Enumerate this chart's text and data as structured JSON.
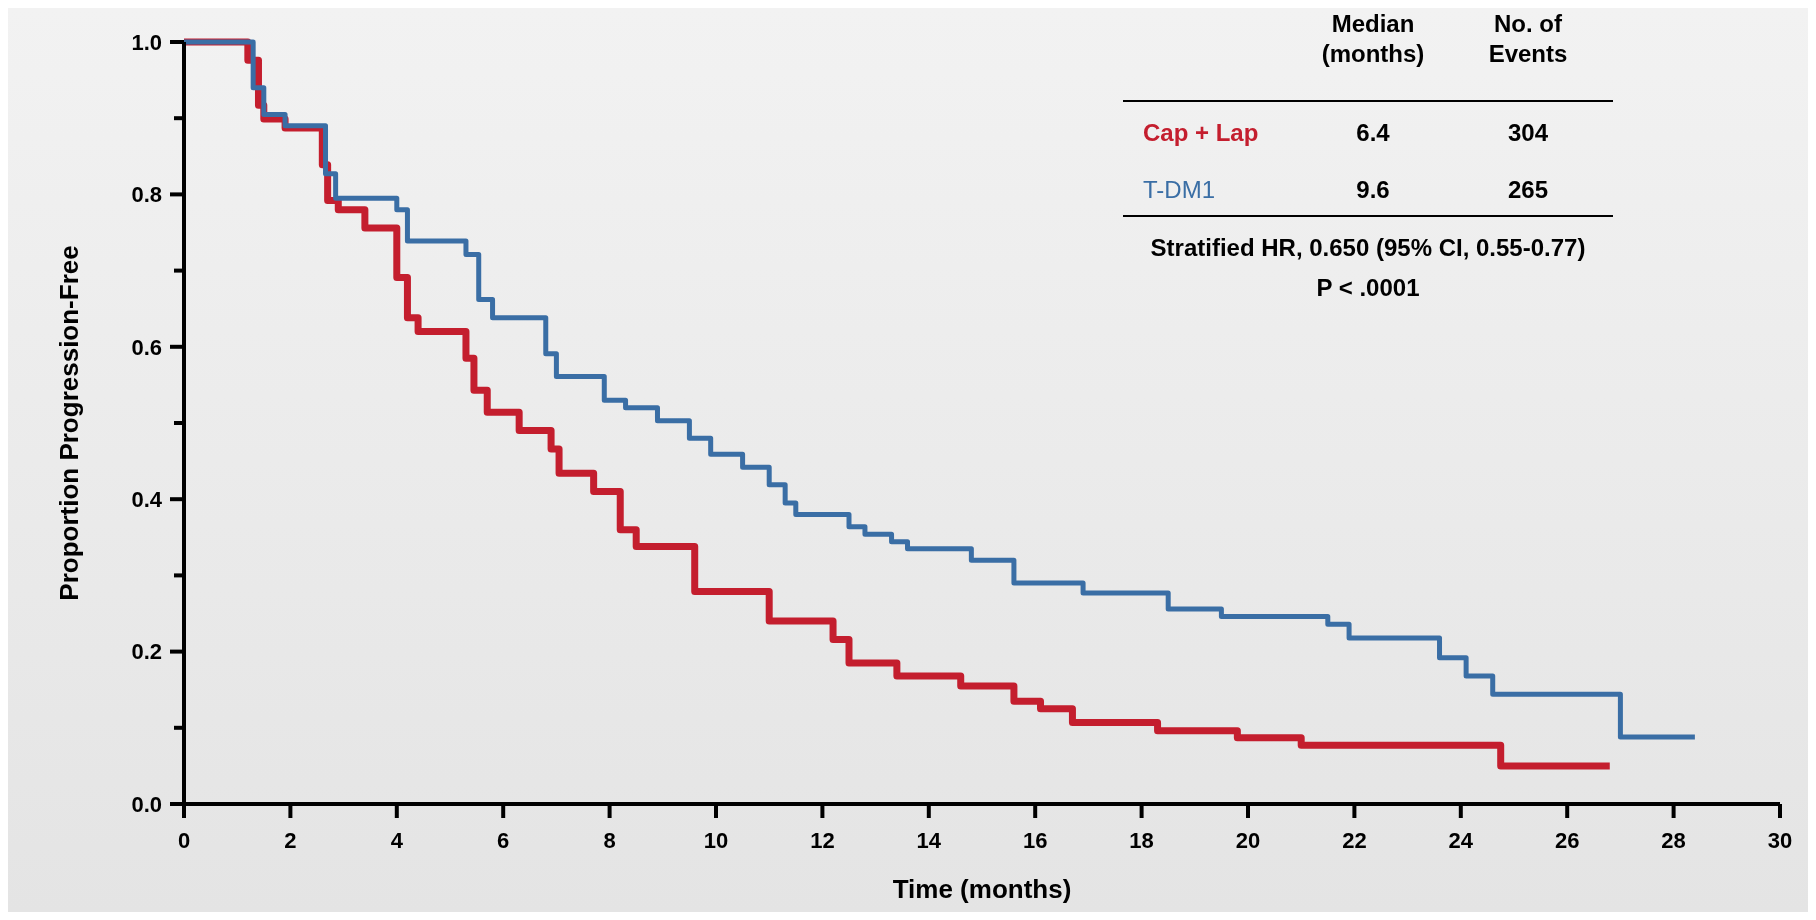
{
  "chart_data": {
    "type": "step",
    "xlabel": "Time (months)",
    "ylabel": "Proportion Progression-Free",
    "xlim": [
      0,
      30
    ],
    "xticks": [
      0,
      2,
      4,
      6,
      8,
      10,
      12,
      14,
      16,
      18,
      20,
      22,
      24,
      26,
      28,
      30
    ],
    "ylim": [
      0,
      1
    ],
    "yticks": [
      {
        "value": 0,
        "label": "0.0"
      },
      {
        "value": 0.1,
        "label": null
      },
      {
        "value": 0.2,
        "label": "0.2"
      },
      {
        "value": 0.3,
        "label": null
      },
      {
        "value": 0.4,
        "label": "0.4"
      },
      {
        "value": 0.5,
        "label": null
      },
      {
        "value": 0.6,
        "label": "0.6"
      },
      {
        "value": 0.7,
        "label": null
      },
      {
        "value": 0.8,
        "label": "0.8"
      },
      {
        "value": 0.9,
        "label": null
      },
      {
        "value": 1,
        "label": "1.0"
      }
    ],
    "legend": "top right",
    "marker": "none",
    "line_style": "solid",
    "grid": false,
    "series": [
      {
        "name": "Cap + Lap",
        "color": "#c41e2e",
        "x": [
          0,
          1.2,
          1.4,
          1.5,
          1.9,
          2.6,
          2.7,
          2.9,
          3.4,
          4.0,
          4.2,
          4.4,
          5.3,
          5.45,
          5.7,
          6.3,
          6.9,
          7.05,
          7.7,
          8.2,
          8.5,
          9.6,
          11.0,
          12.2,
          12.5,
          13.4,
          14.6,
          15.6,
          16.1,
          16.7,
          18.3,
          19.8,
          21.0,
          24.75,
          26.8
        ],
        "values": [
          1,
          0.976,
          0.917,
          0.899,
          0.887,
          0.839,
          0.792,
          0.78,
          0.756,
          0.691,
          0.638,
          0.62,
          0.585,
          0.543,
          0.514,
          0.49,
          0.466,
          0.434,
          0.41,
          0.36,
          0.338,
          0.279,
          0.24,
          0.216,
          0.185,
          0.168,
          0.155,
          0.135,
          0.125,
          0.107,
          0.096,
          0.087,
          0.077,
          0.05,
          0.05
        ]
      },
      {
        "name": "T-DM1",
        "color": "#3a6ea5",
        "x": [
          0,
          1.3,
          1.5,
          1.9,
          2.66,
          2.85,
          4.0,
          4.2,
          5.3,
          5.54,
          5.8,
          6.8,
          7.0,
          7.9,
          8.3,
          8.9,
          9.5,
          9.9,
          10.5,
          11.0,
          11.3,
          11.5,
          12.5,
          12.8,
          13.3,
          13.6,
          14.8,
          15.6,
          16.9,
          18.5,
          19.5,
          21.5,
          21.9,
          23.6,
          24.1,
          24.6,
          27.0,
          28.4
        ],
        "values": [
          1,
          0.94,
          0.905,
          0.89,
          0.827,
          0.795,
          0.78,
          0.739,
          0.721,
          0.662,
          0.638,
          0.591,
          0.561,
          0.53,
          0.52,
          0.503,
          0.48,
          0.459,
          0.442,
          0.419,
          0.395,
          0.38,
          0.364,
          0.354,
          0.344,
          0.335,
          0.32,
          0.29,
          0.277,
          0.256,
          0.246,
          0.236,
          0.218,
          0.192,
          0.168,
          0.144,
          0.088,
          0.088
        ]
      }
    ],
    "annotations": [
      "Median\n(months)",
      "No. of\nEvents",
      "6.4",
      "304",
      "9.6",
      "265",
      "Stratified HR, 0.650 (95% CI, 0.55-0.77)",
      "P < .0001"
    ]
  }
}
